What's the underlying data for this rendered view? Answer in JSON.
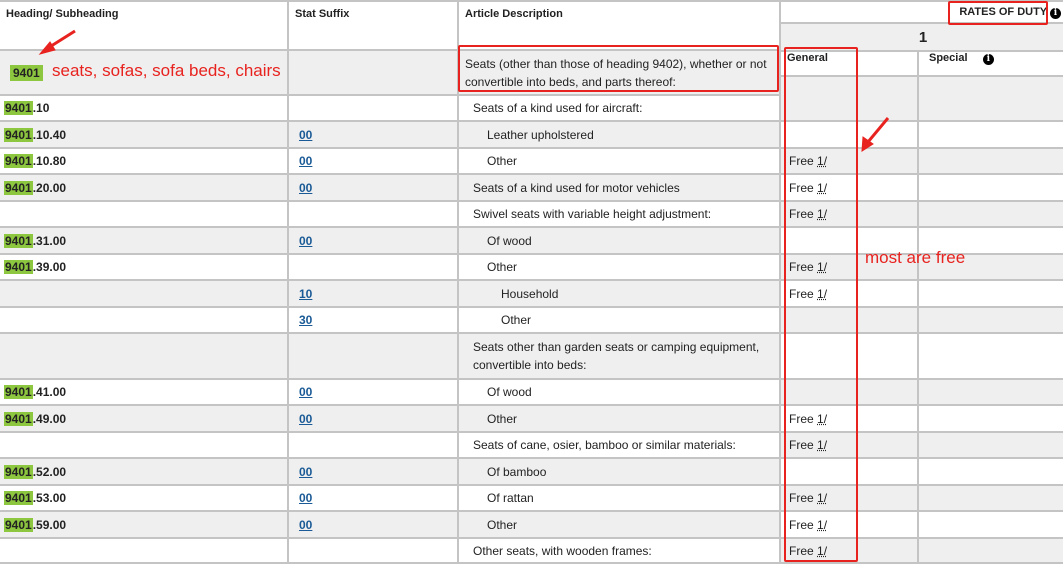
{
  "headers": {
    "heading": "Heading/ Subheading",
    "stat": "Stat Suffix",
    "desc": "Article Description"
  },
  "rates": {
    "title": "RATES OF DUTY",
    "column": "1",
    "general": "General",
    "special": "Special",
    "info_icon": "info-icon"
  },
  "heading_row": {
    "code": "9401",
    "desc": "Seats (other than those of heading 9402), whether or not convertible into beds, and parts thereof:"
  },
  "rows": [
    {
      "code": "9401",
      "suffix": ".10",
      "stat": "",
      "desc": "Seats of a kind used for aircraft:",
      "indent": 0,
      "rate": ""
    },
    {
      "code": "9401",
      "suffix": ".10.40",
      "stat": "00",
      "desc": "Leather upholstered",
      "indent": 1,
      "rate": ""
    },
    {
      "code": "9401",
      "suffix": ".10.80",
      "stat": "00",
      "desc": "Other",
      "indent": 1,
      "rate": "Free",
      "fn": "1/"
    },
    {
      "code": "9401",
      "suffix": ".20.00",
      "stat": "00",
      "desc": "Seats of a kind used for motor vehicles",
      "indent": 0,
      "rate": "Free",
      "fn": "1/"
    },
    {
      "code": "",
      "suffix": "",
      "stat": "",
      "desc": "Swivel seats with variable height adjustment:",
      "indent": 0,
      "rate": "Free",
      "fn": "1/"
    },
    {
      "code": "9401",
      "suffix": ".31.00",
      "stat": "00",
      "desc": "Of wood",
      "indent": 1,
      "rate": ""
    },
    {
      "code": "9401",
      "suffix": ".39.00",
      "stat": "",
      "desc": "Other",
      "indent": 1,
      "rate": "Free",
      "fn": "1/"
    },
    {
      "code": "",
      "suffix": "",
      "stat": "10",
      "desc": "Household",
      "indent": 2,
      "rate": "Free",
      "fn": "1/"
    },
    {
      "code": "",
      "suffix": "",
      "stat": "30",
      "desc": "Other",
      "indent": 2,
      "rate": ""
    },
    {
      "code": "",
      "suffix": "",
      "stat": "",
      "desc": "Seats other than garden seats or camping equipment, convertible into beds:",
      "indent": 0,
      "rate": "",
      "tall": true
    },
    {
      "code": "9401",
      "suffix": ".41.00",
      "stat": "00",
      "desc": "Of wood",
      "indent": 1,
      "rate": ""
    },
    {
      "code": "9401",
      "suffix": ".49.00",
      "stat": "00",
      "desc": "Other",
      "indent": 1,
      "rate": "Free",
      "fn": "1/"
    },
    {
      "code": "",
      "suffix": "",
      "stat": "",
      "desc": "Seats of cane, osier, bamboo or similar materials:",
      "indent": 0,
      "rate": "Free",
      "fn": "1/"
    },
    {
      "code": "9401",
      "suffix": ".52.00",
      "stat": "00",
      "desc": "Of bamboo",
      "indent": 1,
      "rate": ""
    },
    {
      "code": "9401",
      "suffix": ".53.00",
      "stat": "00",
      "desc": "Of rattan",
      "indent": 1,
      "rate": "Free",
      "fn": "1/"
    },
    {
      "code": "9401",
      "suffix": ".59.00",
      "stat": "00",
      "desc": "Other",
      "indent": 1,
      "rate": "Free",
      "fn": "1/"
    },
    {
      "code": "",
      "suffix": "",
      "stat": "",
      "desc": "Other seats, with wooden frames:",
      "indent": 0,
      "rate": "Free",
      "fn": "1/"
    }
  ],
  "annotations": {
    "heading_note": "seats, sofas, sofa beds, chairs",
    "rate_note": "most are free",
    "color": "#e8231f"
  }
}
